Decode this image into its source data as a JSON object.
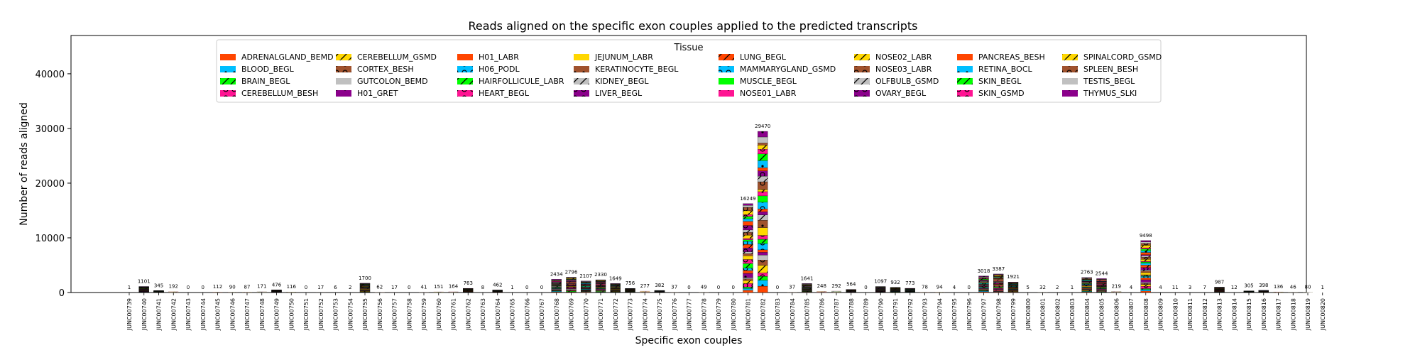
{
  "chart_data": {
    "type": "bar",
    "stacked": true,
    "title": "Reads aligned on the specific exon couples applied to the predicted transcripts",
    "xlabel": "Specific exon couples",
    "ylabel": "Number of reads aligned",
    "ylim": [
      0,
      47000
    ],
    "yticks": [
      0,
      10000,
      20000,
      30000,
      40000
    ],
    "legend_title": "Tissue",
    "legend_position": "top-center",
    "series": [
      {
        "name": "ADRENALGLAND_BEMD",
        "color": "#ff4500",
        "hatch": "none"
      },
      {
        "name": "BLOOD_BEGL",
        "color": "#00bfff",
        "hatch": "dot"
      },
      {
        "name": "BRAIN_BEGL",
        "color": "#00ff00",
        "hatch": "slash"
      },
      {
        "name": "CEREBELLUM_BESH",
        "color": "#ff1493",
        "hatch": "ring"
      },
      {
        "name": "CEREBELLUM_GSMD",
        "color": "#ffd700",
        "hatch": "slash"
      },
      {
        "name": "CORTEX_BESH",
        "color": "#a0522d",
        "hatch": "ring"
      },
      {
        "name": "GUTCOLON_BEMD",
        "color": "#c0c0c0",
        "hatch": "none"
      },
      {
        "name": "H01_GRET",
        "color": "#8b008b",
        "hatch": "dot"
      },
      {
        "name": "H01_LABR",
        "color": "#ff4500",
        "hatch": "none"
      },
      {
        "name": "H06_PODL",
        "color": "#00bfff",
        "hatch": "ring"
      },
      {
        "name": "HAIRFOLLICULE_LABR",
        "color": "#00ff00",
        "hatch": "slash"
      },
      {
        "name": "HEART_BEGL",
        "color": "#ff1493",
        "hatch": "ring"
      },
      {
        "name": "JEJUNUM_LABR",
        "color": "#ffd700",
        "hatch": "none"
      },
      {
        "name": "KERATINOCYTE_BEGL",
        "color": "#a0522d",
        "hatch": "dot"
      },
      {
        "name": "KIDNEY_BEGL",
        "color": "#c0c0c0",
        "hatch": "slash"
      },
      {
        "name": "LIVER_BEGL",
        "color": "#8b008b",
        "hatch": "ring"
      },
      {
        "name": "LUNG_BEGL",
        "color": "#ff4500",
        "hatch": "slash"
      },
      {
        "name": "MAMMARYGLAND_GSMD",
        "color": "#00bfff",
        "hatch": "ring"
      },
      {
        "name": "MUSCLE_BEGL",
        "color": "#00ff00",
        "hatch": "none"
      },
      {
        "name": "NOSE01_LABR",
        "color": "#ff1493",
        "hatch": "dot"
      },
      {
        "name": "NOSE02_LABR",
        "color": "#ffd700",
        "hatch": "slash"
      },
      {
        "name": "NOSE03_LABR",
        "color": "#a0522d",
        "hatch": "ring"
      },
      {
        "name": "OLFBULB_GSMD",
        "color": "#c0c0c0",
        "hatch": "slash"
      },
      {
        "name": "OVARY_BEGL",
        "color": "#8b008b",
        "hatch": "ring"
      },
      {
        "name": "PANCREAS_BESH",
        "color": "#ff4500",
        "hatch": "none"
      },
      {
        "name": "RETINA_BOCL",
        "color": "#00bfff",
        "hatch": "dot"
      },
      {
        "name": "SKIN_BEGL",
        "color": "#00ff00",
        "hatch": "slash"
      },
      {
        "name": "SKIN_GSMD",
        "color": "#ff1493",
        "hatch": "ring"
      },
      {
        "name": "SPINALCORD_GSMD",
        "color": "#ffd700",
        "hatch": "slash"
      },
      {
        "name": "SPLEEN_BESH",
        "color": "#a0522d",
        "hatch": "ring"
      },
      {
        "name": "TESTIS_BEGL",
        "color": "#c0c0c0",
        "hatch": "none"
      },
      {
        "name": "THYMUS_SLKI",
        "color": "#8b008b",
        "hatch": "dot"
      }
    ],
    "categories": [
      "JUNC00739",
      "JUNC00740",
      "JUNC00741",
      "JUNC00742",
      "JUNC00743",
      "JUNC00744",
      "JUNC00745",
      "JUNC00746",
      "JUNC00747",
      "JUNC00748",
      "JUNC00749",
      "JUNC00750",
      "JUNC00751",
      "JUNC00752",
      "JUNC00753",
      "JUNC00754",
      "JUNC00755",
      "JUNC00756",
      "JUNC00757",
      "JUNC00758",
      "JUNC00759",
      "JUNC00760",
      "JUNC00761",
      "JUNC00762",
      "JUNC00763",
      "JUNC00764",
      "JUNC00765",
      "JUNC00766",
      "JUNC00767",
      "JUNC00768",
      "JUNC00769",
      "JUNC00770",
      "JUNC00771",
      "JUNC00772",
      "JUNC00773",
      "JUNC00774",
      "JUNC00775",
      "JUNC00776",
      "JUNC00777",
      "JUNC00778",
      "JUNC00779",
      "JUNC00780",
      "JUNC00781",
      "JUNC00782",
      "JUNC00783",
      "JUNC00784",
      "JUNC00785",
      "JUNC00786",
      "JUNC00787",
      "JUNC00788",
      "JUNC00789",
      "JUNC00790",
      "JUNC00791",
      "JUNC00792",
      "JUNC00793",
      "JUNC00794",
      "JUNC00795",
      "JUNC00796",
      "JUNC00797",
      "JUNC00798",
      "JUNC00799",
      "JUNC00800",
      "JUNC00801",
      "JUNC00802",
      "JUNC00803",
      "JUNC00804",
      "JUNC00805",
      "JUNC00806",
      "JUNC00807",
      "JUNC00808",
      "JUNC00809",
      "JUNC00810",
      "JUNC00811",
      "JUNC00812",
      "JUNC00813",
      "JUNC00814",
      "JUNC00815",
      "JUNC00816",
      "JUNC00817",
      "JUNC00818",
      "JUNC00819",
      "JUNC00820"
    ],
    "totals": [
      1,
      1101,
      345,
      192,
      0,
      0,
      112,
      90,
      87,
      171,
      476,
      116,
      0,
      17,
      6,
      2,
      1700,
      62,
      17,
      0,
      41,
      151,
      164,
      763,
      8,
      462,
      1,
      0,
      0,
      2434,
      2796,
      2107,
      2330,
      1649,
      756,
      277,
      382,
      37,
      0,
      49,
      0,
      0,
      16249,
      29470,
      0,
      37,
      1641,
      248,
      292,
      564,
      0,
      1097,
      932,
      773,
      78,
      94,
      4,
      0,
      3018,
      3387,
      1921,
      5,
      32,
      2,
      1,
      2763,
      2544,
      219,
      4,
      9498,
      4,
      11,
      3,
      7,
      987,
      12,
      305,
      398,
      136,
      46,
      80,
      1
    ]
  }
}
